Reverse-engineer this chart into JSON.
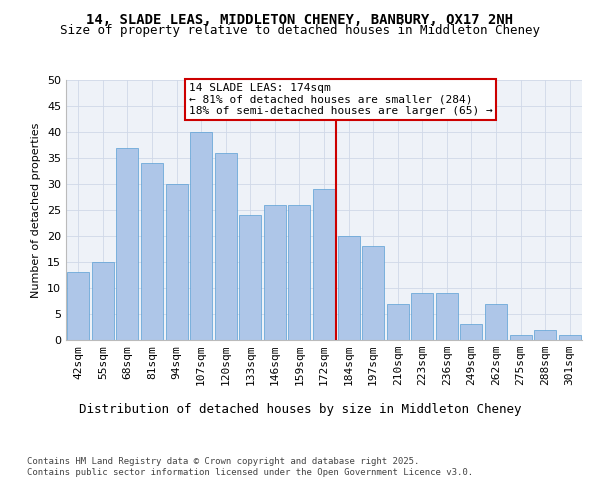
{
  "title": "14, SLADE LEAS, MIDDLETON CHENEY, BANBURY, OX17 2NH",
  "subtitle": "Size of property relative to detached houses in Middleton Cheney",
  "xlabel": "Distribution of detached houses by size in Middleton Cheney",
  "ylabel": "Number of detached properties",
  "categories": [
    "42sqm",
    "55sqm",
    "68sqm",
    "81sqm",
    "94sqm",
    "107sqm",
    "120sqm",
    "133sqm",
    "146sqm",
    "159sqm",
    "172sqm",
    "184sqm",
    "197sqm",
    "210sqm",
    "223sqm",
    "236sqm",
    "249sqm",
    "262sqm",
    "275sqm",
    "288sqm",
    "301sqm"
  ],
  "values": [
    13,
    15,
    37,
    34,
    30,
    40,
    36,
    24,
    26,
    26,
    29,
    20,
    18,
    7,
    9,
    9,
    3,
    7,
    1,
    2,
    1
  ],
  "bar_color": "#aec6e8",
  "bar_edge_color": "#5a9fd4",
  "vline_x": 10.5,
  "vline_color": "#cc0000",
  "annotation_text": "14 SLADE LEAS: 174sqm\n← 81% of detached houses are smaller (284)\n18% of semi-detached houses are larger (65) →",
  "annotation_box_color": "#cc0000",
  "ylim": [
    0,
    50
  ],
  "yticks": [
    0,
    5,
    10,
    15,
    20,
    25,
    30,
    35,
    40,
    45,
    50
  ],
  "grid_color": "#d0d8e8",
  "background_color": "#eef2f8",
  "footer": "Contains HM Land Registry data © Crown copyright and database right 2025.\nContains public sector information licensed under the Open Government Licence v3.0.",
  "title_fontsize": 10,
  "subtitle_fontsize": 9,
  "xlabel_fontsize": 9,
  "ylabel_fontsize": 8,
  "tick_fontsize": 8,
  "annotation_fontsize": 8,
  "footer_fontsize": 6.5
}
